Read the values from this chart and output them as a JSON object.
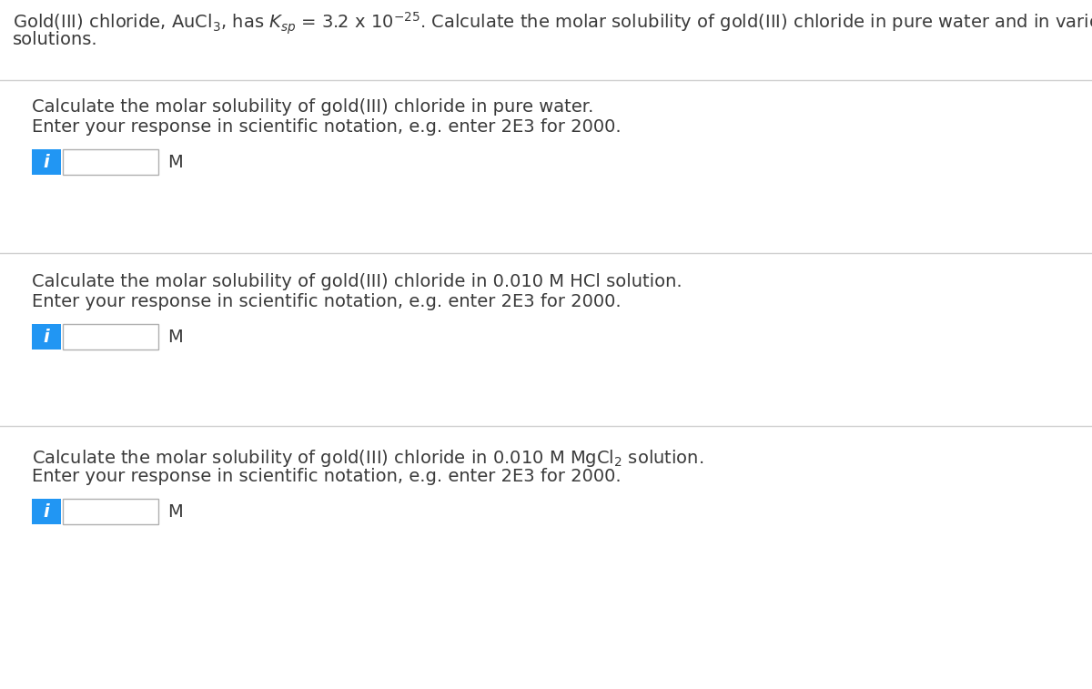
{
  "background_color": "#ffffff",
  "divider_color": "#d0d0d0",
  "sections": [
    {
      "line1": "Calculate the molar solubility of gold(III) chloride in pure water.",
      "line2": "Enter your response in scientific notation, e.g. enter 2E3 for 2000.",
      "unit": "M",
      "has_subscript": false
    },
    {
      "line1": "Calculate the molar solubility of gold(III) chloride in 0.010 M HCl solution.",
      "line2": "Enter your response in scientific notation, e.g. enter 2E3 for 2000.",
      "unit": "M",
      "has_subscript": false
    },
    {
      "line1": "Calculate the molar solubility of gold(III) chloride in 0.010 M MgCl$_2$ solution.",
      "line2": "Enter your response in scientific notation, e.g. enter 2E3 for 2000.",
      "unit": "M",
      "has_subscript": true
    }
  ],
  "info_btn_color": "#2196F3",
  "info_btn_text_color": "#ffffff",
  "input_box_border": "#b0b0b0",
  "text_color": "#3a3a3a",
  "header_fontsize": 14.0,
  "body_fontsize": 14.0,
  "header_indent": 14,
  "section_indent": 35
}
